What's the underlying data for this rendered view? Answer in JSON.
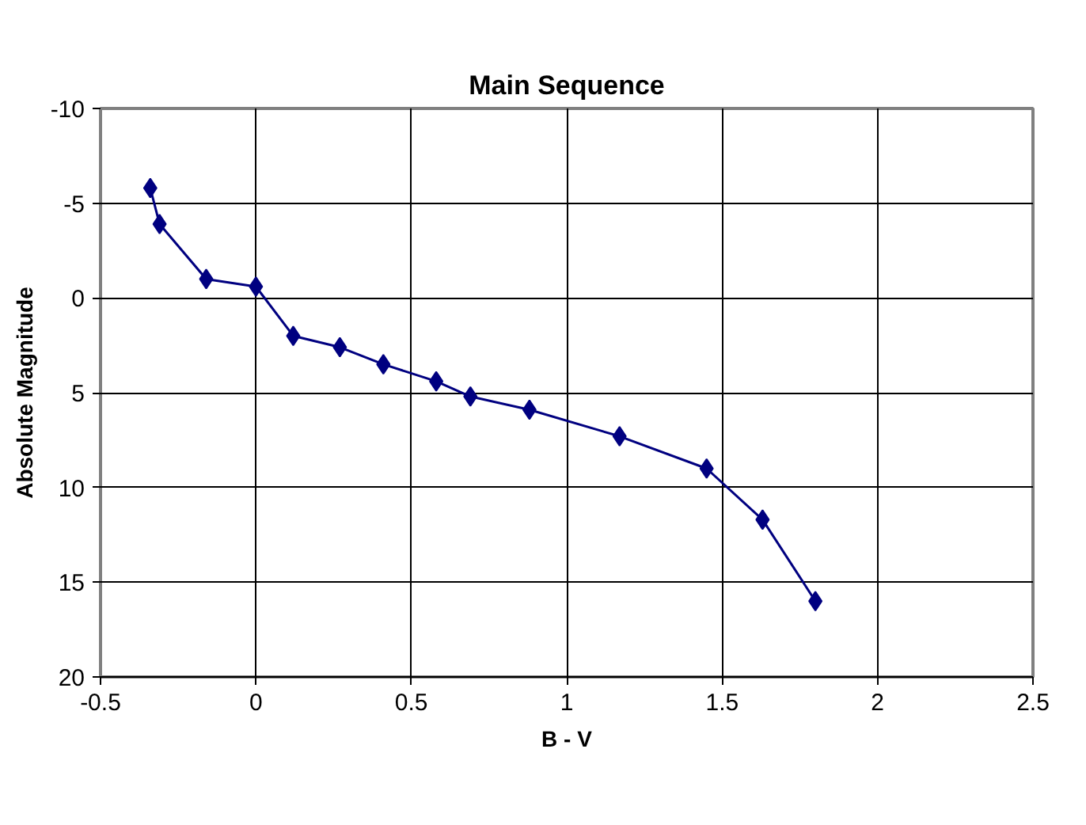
{
  "chart_data": {
    "type": "line",
    "title": "Main Sequence",
    "xlabel": "B - V",
    "ylabel": "Absolute Magnitude",
    "x": [
      -0.34,
      -0.31,
      -0.16,
      0.0,
      0.12,
      0.27,
      0.41,
      0.58,
      0.69,
      0.88,
      1.17,
      1.45,
      1.63,
      1.8
    ],
    "series": [
      {
        "color": "#000080",
        "values": [
          -5.8,
          -3.9,
          -1.0,
          -0.6,
          2.0,
          2.6,
          3.5,
          4.4,
          5.2,
          5.9,
          7.3,
          9.0,
          11.7,
          16.0
        ]
      }
    ],
    "xlim": [
      -0.5,
      2.5
    ],
    "xticks": [
      -0.5,
      0,
      0.5,
      1,
      1.5,
      2,
      2.5
    ],
    "ylim": [
      20,
      -10
    ],
    "yticks": [
      -10,
      -5,
      0,
      5,
      10,
      15,
      20
    ],
    "grid": true,
    "marker": "diamond",
    "line_style": "solid"
  }
}
